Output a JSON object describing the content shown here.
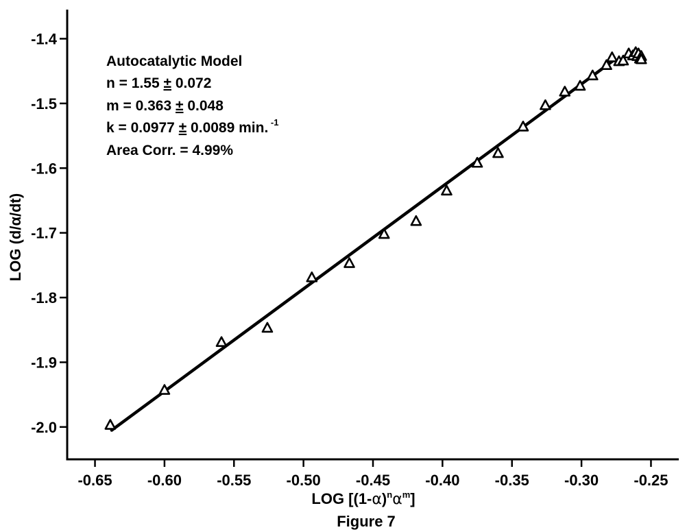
{
  "chart_data": {
    "type": "scatter",
    "title": "",
    "caption": "Figure 7",
    "xlabel": {
      "prefix": "LOG  [(1-",
      "alpha": "α",
      "paren": ")",
      "n": "n",
      "alpha2": "α",
      "m": "m",
      "suffix": "]"
    },
    "ylabel": "LOG (d/α/dt)",
    "xlim": [
      -0.67,
      -0.23
    ],
    "ylim": [
      -2.05,
      -1.355
    ],
    "x_ticks": [
      -0.65,
      -0.6,
      -0.55,
      -0.5,
      -0.45,
      -0.4,
      -0.35,
      -0.3,
      -0.25
    ],
    "x_tick_labels": [
      "-0.65",
      "-0.60",
      "-0.55",
      "-0.50",
      "-0.45",
      "-0.40",
      "-0.35",
      "-0.30",
      "-0.25"
    ],
    "y_ticks": [
      -2.0,
      -1.9,
      -1.8,
      -1.7,
      -1.6,
      -1.5,
      -1.4
    ],
    "y_tick_labels": [
      "-2.0",
      "-1.9",
      "-1.8",
      "-1.7",
      "-1.6",
      "-1.5",
      "-1.4"
    ],
    "grid": false,
    "marker": "triangle",
    "points": [
      [
        -0.639,
        -1.996
      ],
      [
        -0.6,
        -1.942
      ],
      [
        -0.559,
        -1.868
      ],
      [
        -0.526,
        -1.846
      ],
      [
        -0.494,
        -1.768
      ],
      [
        -0.467,
        -1.746
      ],
      [
        -0.442,
        -1.701
      ],
      [
        -0.419,
        -1.681
      ],
      [
        -0.397,
        -1.634
      ],
      [
        -0.375,
        -1.591
      ],
      [
        -0.36,
        -1.576
      ],
      [
        -0.342,
        -1.535
      ],
      [
        -0.326,
        -1.502
      ],
      [
        -0.312,
        -1.481
      ],
      [
        -0.301,
        -1.472
      ],
      [
        -0.292,
        -1.456
      ],
      [
        -0.282,
        -1.44
      ],
      [
        -0.278,
        -1.428
      ],
      [
        -0.273,
        -1.434
      ],
      [
        -0.27,
        -1.433
      ],
      [
        -0.266,
        -1.422
      ],
      [
        -0.263,
        -1.425
      ],
      [
        -0.261,
        -1.42
      ],
      [
        -0.26,
        -1.426
      ],
      [
        -0.259,
        -1.422
      ],
      [
        -0.258,
        -1.43
      ],
      [
        -0.257,
        -1.426
      ],
      [
        -0.257,
        -1.431
      ]
    ],
    "fit_line": {
      "x": [
        -0.638,
        -0.276
      ],
      "y": [
        -2.005,
        -1.432
      ]
    },
    "annotations": [
      {
        "parts": [
          "Autocatalytic Model"
        ]
      },
      {
        "parts": [
          "n = 1.55 ",
          "±",
          " 0.072"
        ]
      },
      {
        "parts": [
          "m = 0.363 ",
          "±",
          " 0.048"
        ]
      },
      {
        "parts": [
          "k = 0.0977 ",
          "±",
          " 0.0089 min.",
          " -1"
        ]
      },
      {
        "parts": [
          "Area Corr. = 4.99%"
        ]
      }
    ]
  }
}
